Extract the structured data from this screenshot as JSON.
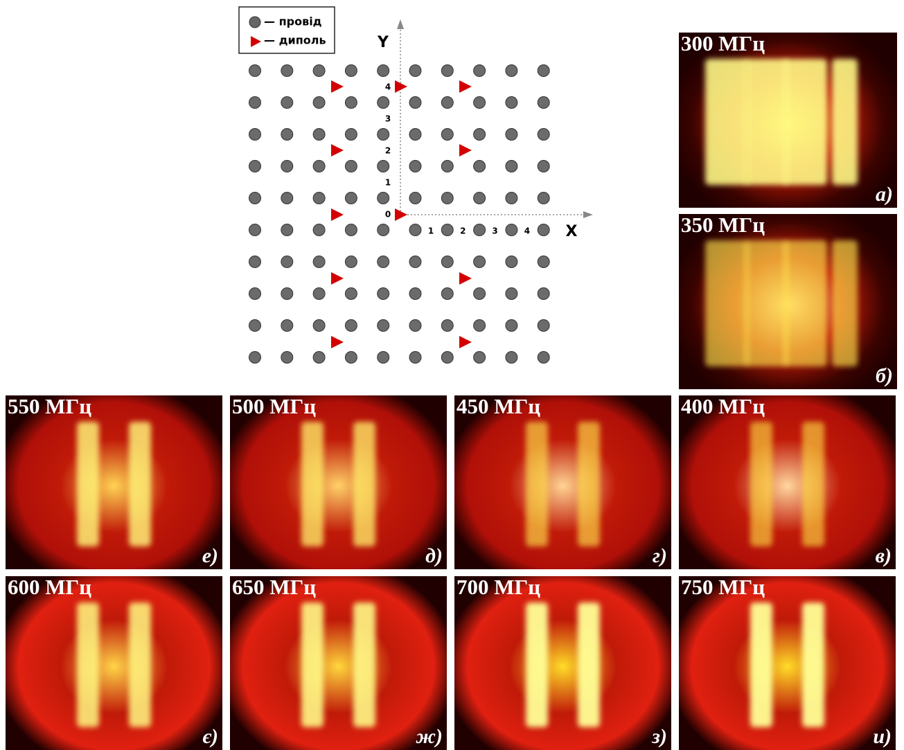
{
  "legend": {
    "wire": "— провід",
    "dipole": "— диполь"
  },
  "axes": {
    "x": "X",
    "y": "Y",
    "x_ticks": [
      "1",
      "2",
      "3",
      "4"
    ],
    "y_ticks": [
      "0",
      "1",
      "2",
      "3",
      "4"
    ]
  },
  "panels": [
    {
      "frequency": "300 МГц",
      "label": "а)"
    },
    {
      "frequency": "350 МГц",
      "label": "б)"
    },
    {
      "frequency": "400 МГц",
      "label": "в)"
    },
    {
      "frequency": "450 МГц",
      "label": "г)"
    },
    {
      "frequency": "500 МГц",
      "label": "д)"
    },
    {
      "frequency": "550 МГц",
      "label": "е)"
    },
    {
      "frequency": "600 МГц",
      "label": "є)"
    },
    {
      "frequency": "650 МГц",
      "label": "ж)"
    },
    {
      "frequency": "700 МГц",
      "label": "з)"
    },
    {
      "frequency": "750 МГц",
      "label": "и)"
    }
  ]
}
